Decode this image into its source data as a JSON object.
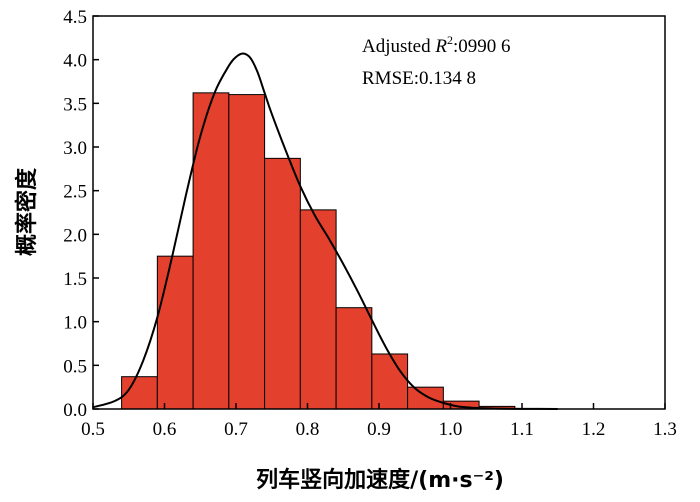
{
  "chart_data": {
    "type": "bar",
    "subtype": "histogram-with-density-curve",
    "xlabel": "列车竖向加速度/(m·s⁻²)",
    "ylabel": "概率密度",
    "xlim": [
      0.5,
      1.3
    ],
    "ylim": [
      0,
      4.5
    ],
    "x_ticks": [
      "0.5",
      "0.6",
      "0.7",
      "0.8",
      "0.9",
      "1.0",
      "1.1",
      "1.2",
      "1.3"
    ],
    "y_ticks": [
      "0.0",
      "0.5",
      "1.0",
      "1.5",
      "2.0",
      "2.5",
      "3.0",
      "3.5",
      "4.0",
      "4.5"
    ],
    "bins": [
      {
        "x0": 0.54,
        "x1": 0.59,
        "value": 0.37
      },
      {
        "x0": 0.59,
        "x1": 0.64,
        "value": 1.75
      },
      {
        "x0": 0.64,
        "x1": 0.69,
        "value": 3.62
      },
      {
        "x0": 0.69,
        "x1": 0.74,
        "value": 3.6
      },
      {
        "x0": 0.74,
        "x1": 0.79,
        "value": 2.87
      },
      {
        "x0": 0.79,
        "x1": 0.84,
        "value": 2.28
      },
      {
        "x0": 0.84,
        "x1": 0.89,
        "value": 1.16
      },
      {
        "x0": 0.89,
        "x1": 0.94,
        "value": 0.63
      },
      {
        "x0": 0.94,
        "x1": 0.99,
        "value": 0.25
      },
      {
        "x0": 0.99,
        "x1": 1.04,
        "value": 0.09
      },
      {
        "x0": 1.04,
        "x1": 1.09,
        "value": 0.03
      }
    ],
    "curve": {
      "x": [
        0.5,
        0.53,
        0.55,
        0.57,
        0.59,
        0.61,
        0.63,
        0.65,
        0.67,
        0.69,
        0.7,
        0.71,
        0.72,
        0.73,
        0.74,
        0.75,
        0.77,
        0.79,
        0.81,
        0.83,
        0.85,
        0.87,
        0.89,
        0.91,
        0.93,
        0.95,
        0.97,
        0.99,
        1.01,
        1.03,
        1.05,
        1.07,
        1.1,
        1.15
      ],
      "y": [
        0.02,
        0.09,
        0.22,
        0.55,
        1.05,
        1.72,
        2.45,
        3.12,
        3.62,
        3.93,
        4.03,
        4.07,
        4.02,
        3.86,
        3.62,
        3.38,
        2.95,
        2.55,
        2.22,
        1.95,
        1.66,
        1.35,
        1.02,
        0.7,
        0.43,
        0.24,
        0.13,
        0.07,
        0.03,
        0.015,
        0.008,
        0.004,
        0.002,
        0.0
      ]
    },
    "bar_color": "#e3402d",
    "bar_edge_color": "#000000",
    "curve_color": "#000000",
    "grid": false,
    "legend": "none",
    "annotations": {
      "adjusted_prefix": "Adjusted ",
      "r2_symbol": "R",
      "r2_sup": "2",
      "r2_value": ":0990 6",
      "rmse": "RMSE:0.134 8"
    }
  }
}
